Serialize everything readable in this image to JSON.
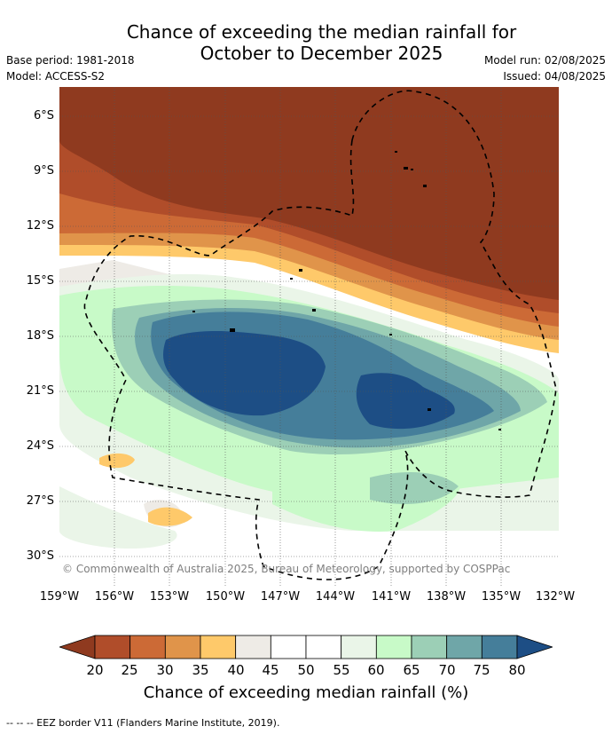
{
  "title": {
    "line1": "Chance of exceeding the median rainfall for",
    "line2": "October to December 2025"
  },
  "meta": {
    "base_period": "Base period: 1981-2018",
    "model": "Model: ACCESS-S2",
    "model_run": "Model run: 02/08/2025",
    "issued": "Issued: 04/08/2025"
  },
  "axes": {
    "lat_labels": [
      "6°S",
      "9°S",
      "12°S",
      "15°S",
      "18°S",
      "21°S",
      "24°S",
      "27°S",
      "30°S"
    ],
    "lon_labels": [
      "159°W",
      "156°W",
      "153°W",
      "150°W",
      "147°W",
      "144°W",
      "141°W",
      "138°W",
      "135°W",
      "132°W"
    ]
  },
  "credit": "© Commonwealth of Australia 2025, Bureau of Meteorology, supported by COSPPac",
  "colorbar": {
    "title": "Chance of exceeding median rainfall (%)",
    "labels": [
      "20",
      "25",
      "30",
      "35",
      "40",
      "45",
      "50",
      "55",
      "60",
      "65",
      "70",
      "75",
      "80"
    ],
    "colors": [
      "#8f3a1f",
      "#b04d2a",
      "#cc6a36",
      "#e0944a",
      "#fec96a",
      "#eeebe6",
      "#ffffff",
      "#ffffff",
      "#eaf5e8",
      "#c8fac8",
      "#9ccfb6",
      "#6fa6a8",
      "#457e9a",
      "#1d4e85"
    ]
  },
  "legend_note": "--  --  -- EEZ border V11 (Flanders Marine Institute, 2019)."
}
